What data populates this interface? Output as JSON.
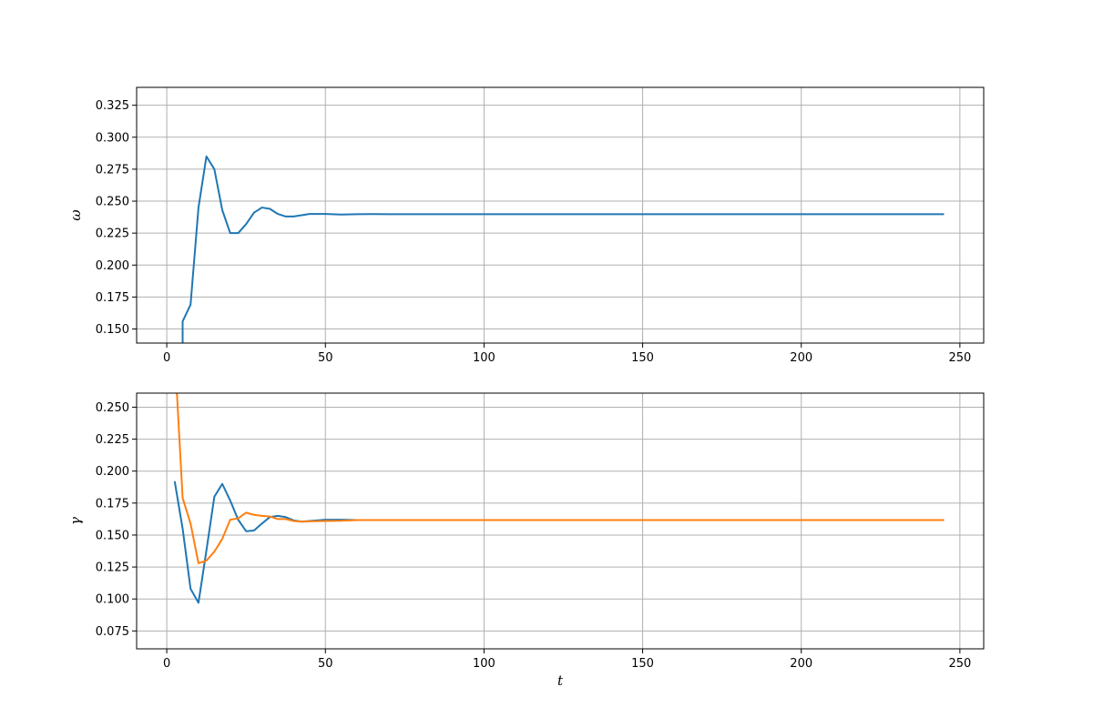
{
  "chart_data": [
    {
      "type": "line",
      "title": "",
      "xlabel": "",
      "ylabel": "ω",
      "xlim": [
        -9.5,
        257.5
      ],
      "ylim": [
        0.139,
        0.339
      ],
      "xticks": [
        0,
        50,
        100,
        150,
        200,
        250
      ],
      "yticks": [
        0.15,
        0.175,
        0.2,
        0.225,
        0.25,
        0.275,
        0.3,
        0.325
      ],
      "ytick_labels": [
        "0.150",
        "0.175",
        "0.200",
        "0.225",
        "0.250",
        "0.275",
        "0.300",
        "0.325"
      ],
      "grid": true,
      "series": [
        {
          "color": "#1f77b4",
          "x": [
            5,
            5,
            7.5,
            10,
            12.5,
            15,
            17.5,
            20,
            22.5,
            25,
            27.5,
            30,
            32.5,
            35,
            37.5,
            40,
            42.5,
            45,
            47.5,
            50,
            55,
            60,
            65,
            70,
            100,
            150,
            200,
            245
          ],
          "y": [
            0.139,
            0.156,
            0.169,
            0.245,
            0.285,
            0.275,
            0.243,
            0.225,
            0.225,
            0.232,
            0.241,
            0.245,
            0.244,
            0.24,
            0.238,
            0.238,
            0.239,
            0.24,
            0.24,
            0.24,
            0.2395,
            0.2398,
            0.2399,
            0.2398,
            0.2398,
            0.2398,
            0.2398,
            0.2398
          ]
        }
      ]
    },
    {
      "type": "line",
      "title": "",
      "xlabel": "t",
      "ylabel": "γ",
      "xlim": [
        -9.5,
        257.5
      ],
      "ylim": [
        0.061,
        0.261
      ],
      "xticks": [
        0,
        50,
        100,
        150,
        200,
        250
      ],
      "yticks": [
        0.075,
        0.1,
        0.125,
        0.15,
        0.175,
        0.2,
        0.225,
        0.25
      ],
      "ytick_labels": [
        "0.075",
        "0.100",
        "0.125",
        "0.150",
        "0.175",
        "0.200",
        "0.225",
        "0.250"
      ],
      "grid": true,
      "series": [
        {
          "color": "#1f77b4",
          "x": [
            2.5,
            5,
            7.5,
            10,
            12.5,
            15,
            17.5,
            20,
            22.5,
            25,
            27.5,
            30,
            32.5,
            35,
            37.5,
            40,
            42.5,
            45,
            50,
            55,
            60,
            70,
            100,
            150,
            200,
            245
          ],
          "y": [
            0.192,
            0.155,
            0.108,
            0.097,
            0.138,
            0.18,
            0.19,
            0.177,
            0.162,
            0.153,
            0.1535,
            0.159,
            0.164,
            0.165,
            0.164,
            0.1615,
            0.1605,
            0.161,
            0.162,
            0.162,
            0.1617,
            0.1617,
            0.1617,
            0.1617,
            0.1617,
            0.1617
          ]
        },
        {
          "color": "#ff7f0e",
          "x": [
            3.2,
            5,
            7.5,
            10,
            12.5,
            15,
            17.5,
            20,
            22.5,
            25,
            27.5,
            30,
            32.5,
            35,
            37.5,
            40,
            42.5,
            45,
            50,
            55,
            60,
            70,
            100,
            150,
            200,
            245
          ],
          "y": [
            0.261,
            0.179,
            0.159,
            0.128,
            0.13,
            0.137,
            0.147,
            0.162,
            0.163,
            0.1675,
            0.1658,
            0.165,
            0.1645,
            0.1625,
            0.1625,
            0.161,
            0.1605,
            0.1607,
            0.161,
            0.1612,
            0.1617,
            0.1617,
            0.1617,
            0.1617,
            0.1617,
            0.1617
          ]
        }
      ]
    }
  ]
}
